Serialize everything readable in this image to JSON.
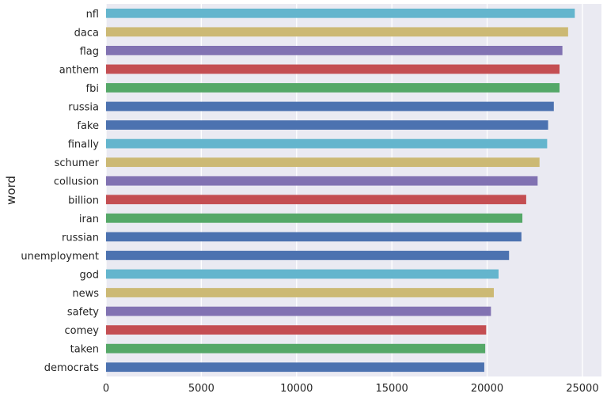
{
  "chart_data": {
    "type": "bar",
    "orientation": "horizontal",
    "title": "",
    "xlabel": "",
    "ylabel": "word",
    "xlim": [
      0,
      26000
    ],
    "xticks": [
      0,
      5000,
      10000,
      15000,
      20000,
      25000
    ],
    "xtick_labels": [
      "0",
      "5000",
      "10000",
      "15000",
      "20000",
      "25000"
    ],
    "grid": true,
    "legend": "none",
    "background_color": "#EAEAF2",
    "categories": [
      "nfl",
      "daca",
      "flag",
      "anthem",
      "fbi",
      "russia",
      "fake",
      "finally",
      "schumer",
      "collusion",
      "billion",
      "iran",
      "russian",
      "unemployment",
      "god",
      "news",
      "safety",
      "comey",
      "taken",
      "democrats"
    ],
    "values": [
      24600,
      24250,
      23950,
      23800,
      23800,
      23500,
      23200,
      23150,
      22750,
      22650,
      22050,
      21850,
      21800,
      21150,
      20600,
      20350,
      20200,
      19950,
      19900,
      19850
    ],
    "colors": [
      "#64B5CD",
      "#CCB974",
      "#8172B2",
      "#C44E52",
      "#55A868",
      "#4C72B0",
      "#4C72B0",
      "#64B5CD",
      "#CCB974",
      "#8172B2",
      "#C44E52",
      "#55A868",
      "#4C72B0",
      "#4C72B0",
      "#64B5CD",
      "#CCB974",
      "#8172B2",
      "#C44E52",
      "#55A868",
      "#4C72B0"
    ]
  }
}
